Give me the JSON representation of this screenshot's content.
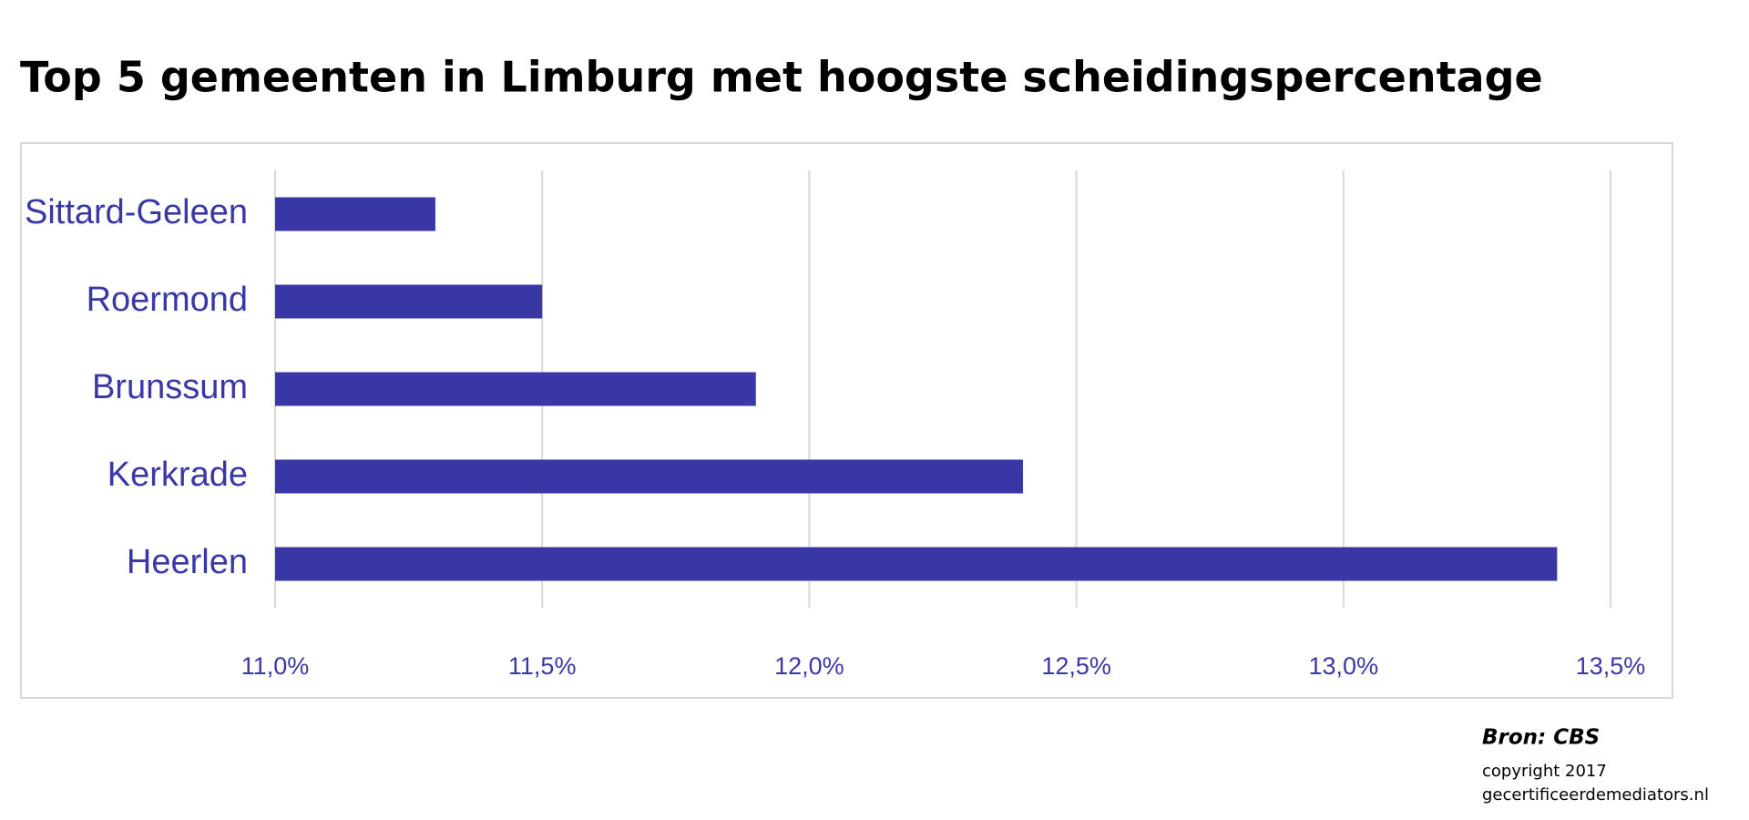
{
  "chart_data": {
    "type": "hbar",
    "title": "Top 5 gemeenten in Limburg met hoogste scheidingspercentage",
    "categories": [
      "Sittard-Geleen",
      "Roermond",
      "Brunssum",
      "Kerkrade",
      "Heerlen"
    ],
    "values": [
      11.3,
      11.5,
      11.9,
      12.4,
      13.4
    ],
    "color": "#3936a5",
    "xlim": [
      11,
      13.5
    ],
    "xticks": [
      {
        "value": 11,
        "label": "11,0%"
      },
      {
        "value": 11.5,
        "label": "11,5%"
      },
      {
        "value": 12,
        "label": "12,0%"
      },
      {
        "value": 12.5,
        "label": "12,5%"
      },
      {
        "value": 13,
        "label": "13,0%"
      },
      {
        "value": 13.5,
        "label": "13,5%"
      }
    ],
    "grid": true,
    "source": "Bron: CBS",
    "copyright": [
      "copyright 2017",
      "gecertificeerdemediators.nl"
    ]
  }
}
